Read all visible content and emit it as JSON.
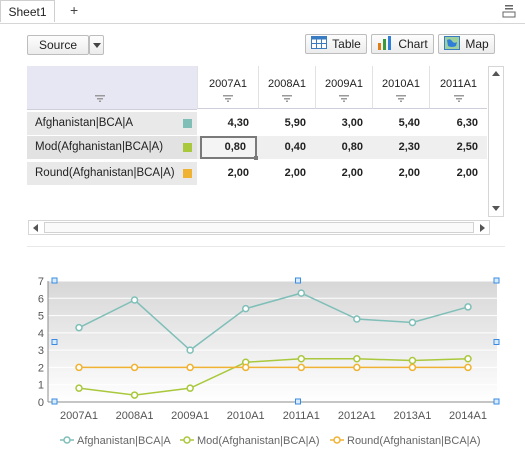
{
  "tabs": {
    "active_label": "Sheet1",
    "add_label": "+"
  },
  "toolbar": {
    "source_label": "Source",
    "table_label": "Table",
    "chart_label": "Chart",
    "map_label": "Map"
  },
  "grid": {
    "columns": [
      "2007A1",
      "2008A1",
      "2009A1",
      "2010A1",
      "2011A1"
    ],
    "rows": [
      {
        "label": "Afghanistan|BCA|A",
        "color": "#7fbfb8",
        "values": [
          "4,30",
          "5,90",
          "3,00",
          "5,40",
          "6,30"
        ]
      },
      {
        "label": "Mod(Afghanistan|BCA|A)",
        "color": "#a9c83b",
        "values": [
          "0,80",
          "0,40",
          "0,80",
          "2,30",
          "2,50"
        ]
      },
      {
        "label": "Round(Afghanistan|BCA|A)",
        "color": "#f0b232",
        "values": [
          "2,00",
          "2,00",
          "2,00",
          "2,00",
          "2,00"
        ]
      }
    ]
  },
  "chart_data": {
    "type": "line",
    "categories": [
      "2007A1",
      "2008A1",
      "2009A1",
      "2010A1",
      "2011A1",
      "2012A1",
      "2013A1",
      "2014A1"
    ],
    "ylim": [
      0,
      7
    ],
    "yticks": [
      "0",
      "1",
      "2",
      "3",
      "4",
      "5",
      "6",
      "7"
    ],
    "grid": true,
    "legend": "bottom",
    "series": [
      {
        "name": "Afghanistan|BCA|A",
        "color": "#7fbfb8",
        "values": [
          4.3,
          5.9,
          3.0,
          5.4,
          6.3,
          4.8,
          4.6,
          5.5
        ]
      },
      {
        "name": "Mod(Afghanistan|BCA|A)",
        "color": "#a9c83b",
        "values": [
          0.8,
          0.4,
          0.8,
          2.3,
          2.5,
          2.5,
          2.4,
          2.5
        ]
      },
      {
        "name": "Round(Afghanistan|BCA|A)",
        "color": "#f0b232",
        "values": [
          2.0,
          2.0,
          2.0,
          2.0,
          2.0,
          2.0,
          2.0,
          2.0
        ]
      }
    ]
  }
}
